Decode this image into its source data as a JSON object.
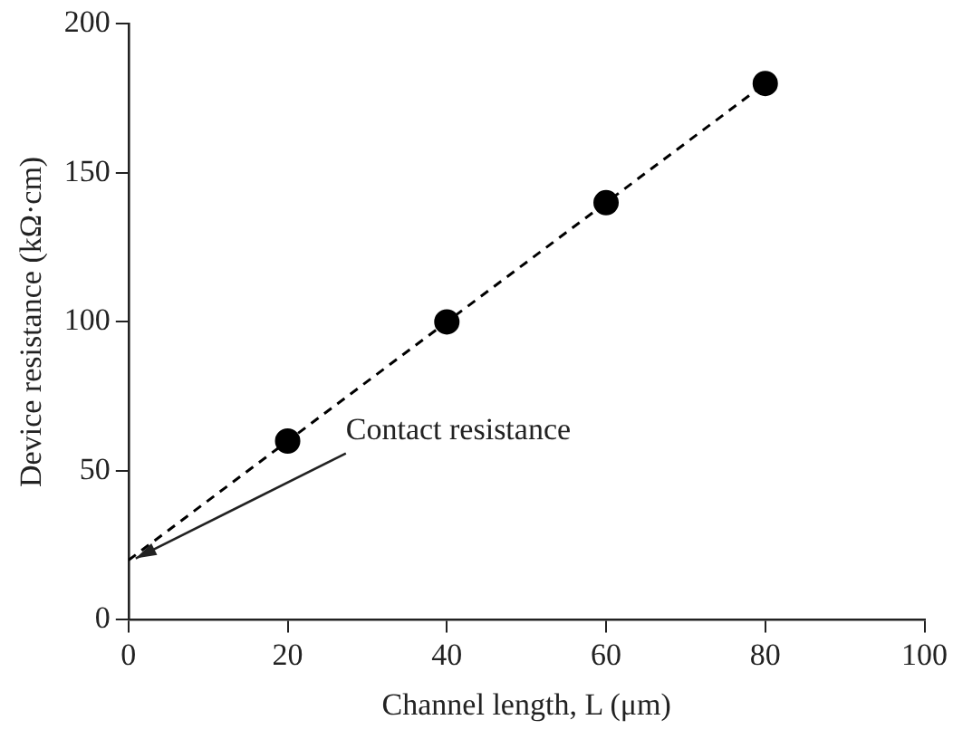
{
  "chart_data": {
    "type": "scatter",
    "xlabel": "Channel length, L (μm)",
    "ylabel": "Device resistance (kΩ·cm)",
    "xlim": [
      0,
      100
    ],
    "xticks": [
      0,
      20,
      40,
      60,
      80,
      100
    ],
    "ylim": [
      0,
      200
    ],
    "yticks": [
      0,
      50,
      100,
      150,
      200
    ],
    "grid": false,
    "legend": false,
    "marker": "circle",
    "series": [
      {
        "color": "#000000",
        "x": [
          20,
          40,
          60,
          80
        ],
        "values": [
          60,
          100,
          140,
          180
        ]
      },
      {
        "type": "line",
        "color": "#000000",
        "x": [
          0,
          80
        ],
        "values": [
          20,
          180
        ],
        "line_style": "dashed",
        "marker": "none"
      }
    ],
    "annotations": [
      {
        "text": "Contact resistance",
        "x": 0,
        "y": 20
      }
    ]
  }
}
